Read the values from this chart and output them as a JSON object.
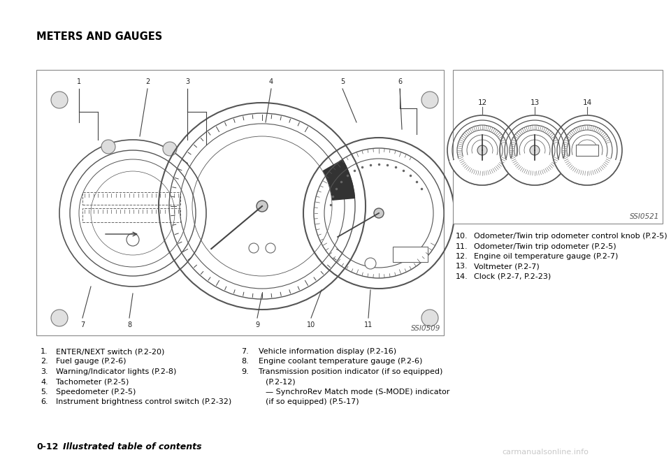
{
  "title": "METERS AND GAUGES",
  "bg_color": "#ffffff",
  "text_color": "#000000",
  "main_image_label": "SSI0509",
  "sub_image_label": "SSI0521",
  "left_list": [
    [
      "1.",
      "ENTER/NEXT switch (P.2-20)"
    ],
    [
      "2.",
      "Fuel gauge (P.2-6)"
    ],
    [
      "3.",
      "Warning/Indicator lights (P.2-8)"
    ],
    [
      "4.",
      "Tachometer (P.2-5)"
    ],
    [
      "5.",
      "Speedometer (P.2-5)"
    ],
    [
      "6.",
      "Instrument brightness control switch (P.2-32)"
    ]
  ],
  "right_list": [
    [
      "7.",
      "Vehicle information display (P.2-16)"
    ],
    [
      "8.",
      "Engine coolant temperature gauge (P.2-6)"
    ],
    [
      "9.",
      "Transmission position indicator (if so equipped)"
    ],
    [
      "",
      "(P.2-12)"
    ],
    [
      "",
      "— SynchroRev Match mode (S-MODE) indicator"
    ],
    [
      "",
      "(if so equipped) (P.5-17)"
    ]
  ],
  "right_box_list": [
    [
      "10.",
      "Odometer/Twin trip odometer control knob (P.2-5)"
    ],
    [
      "11.",
      "Odometer/Twin trip odometer (P.2-5)"
    ],
    [
      "12.",
      "Engine oil temperature gauge (P.2-7)"
    ],
    [
      "13.",
      "Voltmeter (P.2-7)"
    ],
    [
      "14.",
      "Clock (P.2-7, P.2-23)"
    ]
  ],
  "footer_num": "0-12",
  "footer_text": "Illustrated table of contents"
}
